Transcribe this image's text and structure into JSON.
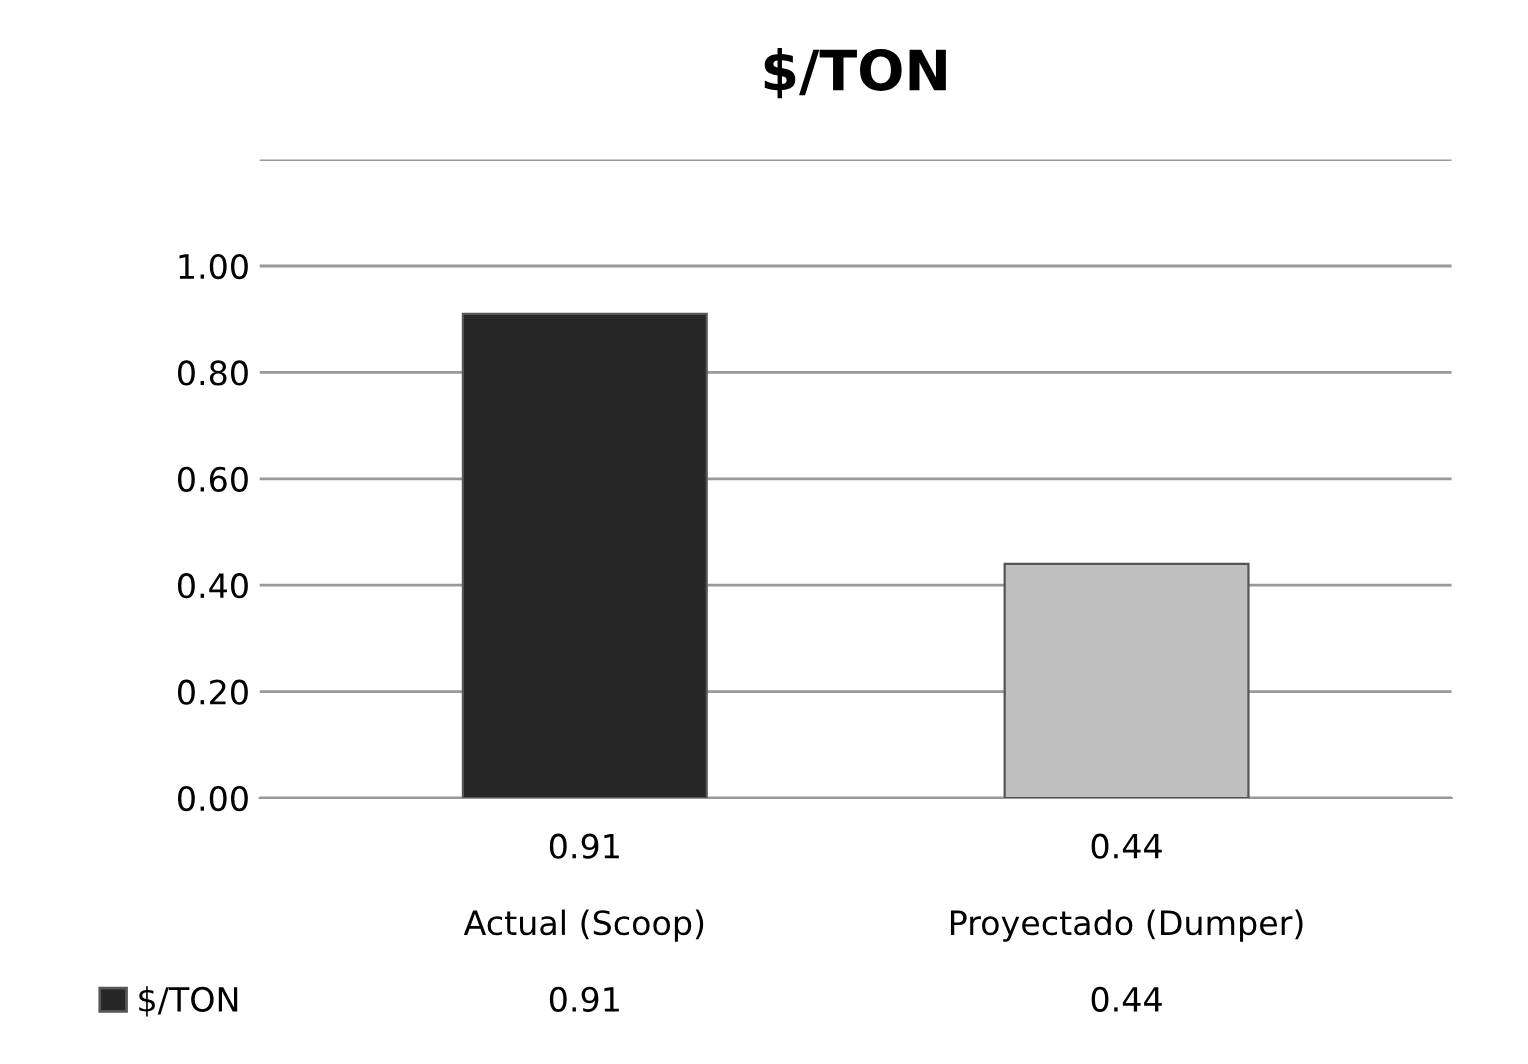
{
  "chart_data": {
    "type": "bar",
    "title": "$/TON",
    "categories": [
      "Actual (Scoop)",
      "Proyectado (Dumper)"
    ],
    "series": [
      {
        "name": "$/TON",
        "color": "#262626",
        "colors": [
          "#262626",
          "#bfbfbf"
        ],
        "values": [
          0.91,
          0.44
        ],
        "value_labels": [
          "0.91",
          "0.44"
        ]
      }
    ],
    "ylim": [
      0,
      1.2
    ],
    "yticks": [
      {
        "value": 0,
        "label": "0.00"
      },
      {
        "value": 0.2,
        "label": "0.20"
      },
      {
        "value": 0.4,
        "label": "0.40"
      },
      {
        "value": 0.6,
        "label": "0.60"
      },
      {
        "value": 0.8,
        "label": "0.80"
      },
      {
        "value": 1.0,
        "label": "1.00"
      },
      {
        "value": 1.2,
        "label": null
      }
    ],
    "grid": "y",
    "annotations": [
      "0.91",
      "0.44"
    ],
    "legend": "bottom left"
  }
}
